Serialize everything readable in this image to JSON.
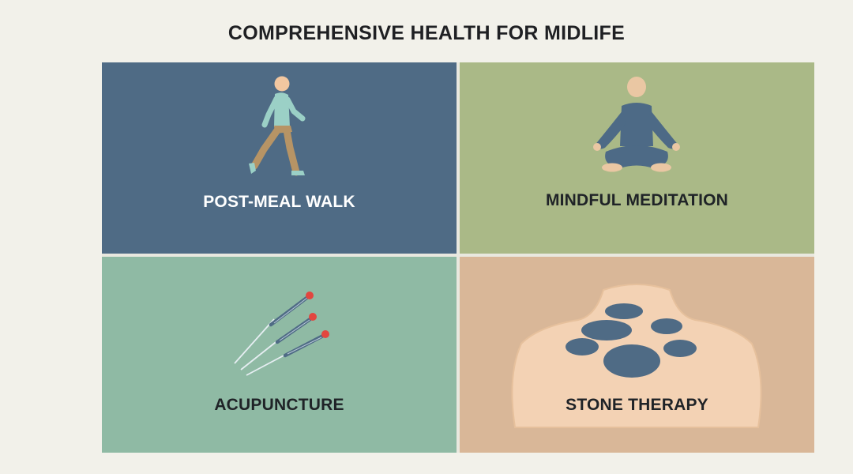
{
  "page": {
    "title": "COMPREHENSIVE HEALTH FOR MIDLIFE"
  },
  "cards": [
    {
      "label": "POST-MEAL WALK",
      "icon": "walking-person-icon",
      "background": "#4f6b85"
    },
    {
      "label": "MINDFUL MEDITATION",
      "icon": "meditating-person-icon",
      "background": "#aab987"
    },
    {
      "label": "ACUPUNCTURE",
      "icon": "acupuncture-needles-icon",
      "background": "#8fbaa4"
    },
    {
      "label": "STONE THERAPY",
      "icon": "hot-stones-on-back-icon",
      "background": "#d9b798"
    }
  ]
}
